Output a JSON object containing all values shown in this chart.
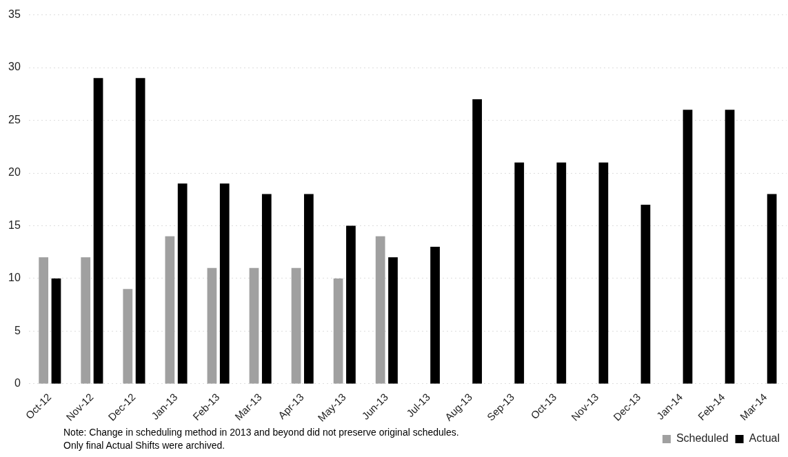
{
  "chart_data": {
    "type": "bar",
    "categories": [
      "Oct-12",
      "Nov-12",
      "Dec-12",
      "Jan-13",
      "Feb-13",
      "Mar-13",
      "Apr-13",
      "May-13",
      "Jun-13",
      "Jul-13",
      "Aug-13",
      "Sep-13",
      "Oct-13",
      "Nov-13",
      "Dec-13",
      "Jan-14",
      "Feb-14",
      "Mar-14"
    ],
    "series": [
      {
        "name": "Scheduled",
        "color": "#a0a0a0",
        "values": [
          12,
          12,
          9,
          14,
          11,
          11,
          11,
          10,
          14,
          null,
          null,
          null,
          null,
          null,
          null,
          null,
          null,
          null
        ]
      },
      {
        "name": "Actual",
        "color": "#000000",
        "values": [
          10,
          29,
          29,
          19,
          19,
          18,
          18,
          15,
          12,
          13,
          27,
          21,
          21,
          21,
          17,
          26,
          26,
          18
        ]
      }
    ],
    "ylim": [
      0,
      35
    ],
    "yticks": [
      0,
      5,
      10,
      15,
      20,
      25,
      30,
      35
    ],
    "grid": "y",
    "legend": "bottom right",
    "annotations": [
      "Note:  Change in scheduling method in 2013  and beyond did not preserve original schedules.  Only final Actual Shifts were archived."
    ]
  }
}
